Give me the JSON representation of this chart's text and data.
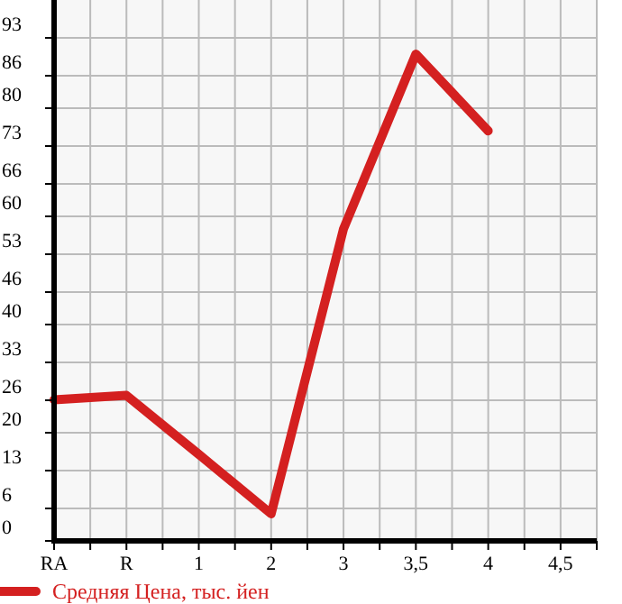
{
  "chart_data": {
    "type": "line",
    "categories": [
      "RA",
      "R",
      "1",
      "2",
      "3",
      "3,5",
      "4",
      "4,5"
    ],
    "series": [
      {
        "name": "Средняя Цена, тыс. йен",
        "color": "#d42020",
        "values": [
          26.1,
          26.9,
          16,
          5,
          57.7,
          90,
          75.8,
          null
        ]
      }
    ],
    "ylim": [
      0,
      100
    ],
    "yticks": [
      0,
      6,
      13,
      20,
      26,
      33,
      40,
      46,
      53,
      60,
      66,
      73,
      80,
      86,
      93
    ],
    "grid": true,
    "legend": "bottom",
    "marker": "none",
    "line_style": "solid"
  }
}
